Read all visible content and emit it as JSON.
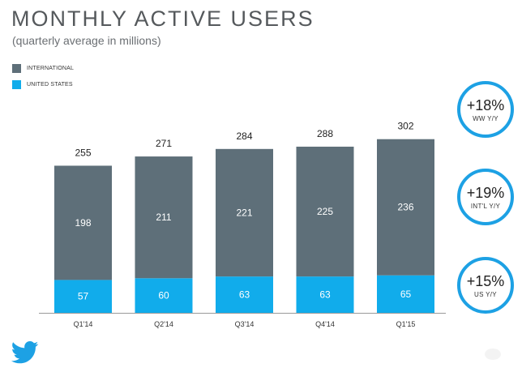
{
  "header": {
    "title": "MONTHLY ACTIVE USERS",
    "subtitle": "(quarterly average in millions)"
  },
  "legend": [
    {
      "label": "INTERNATIONAL",
      "color": "#5e6f79"
    },
    {
      "label": "UNITED STATES",
      "color": "#11aceb"
    }
  ],
  "badges": [
    {
      "value": "+18%",
      "label": "WW Y/Y"
    },
    {
      "value": "+19%",
      "label": "INT'L Y/Y"
    },
    {
      "value": "+15%",
      "label": "US Y/Y"
    }
  ],
  "colors": {
    "international": "#5e6f79",
    "united_states": "#11aceb",
    "badge_ring": "#1da1e4",
    "axis": "#9a9a9a"
  },
  "icons": {
    "logo": "twitter-bird-icon"
  },
  "chart_data": {
    "type": "bar",
    "stacked": true,
    "categories": [
      "Q1'14",
      "Q2'14",
      "Q3'14",
      "Q4'14",
      "Q1'15"
    ],
    "series": [
      {
        "name": "UNITED STATES",
        "values": [
          57,
          60,
          63,
          63,
          65
        ]
      },
      {
        "name": "INTERNATIONAL",
        "values": [
          198,
          211,
          221,
          225,
          236
        ]
      }
    ],
    "totals": [
      255,
      271,
      284,
      288,
      302
    ],
    "ylim": [
      0,
      302
    ],
    "legend_position": "top-left",
    "grid": false
  }
}
